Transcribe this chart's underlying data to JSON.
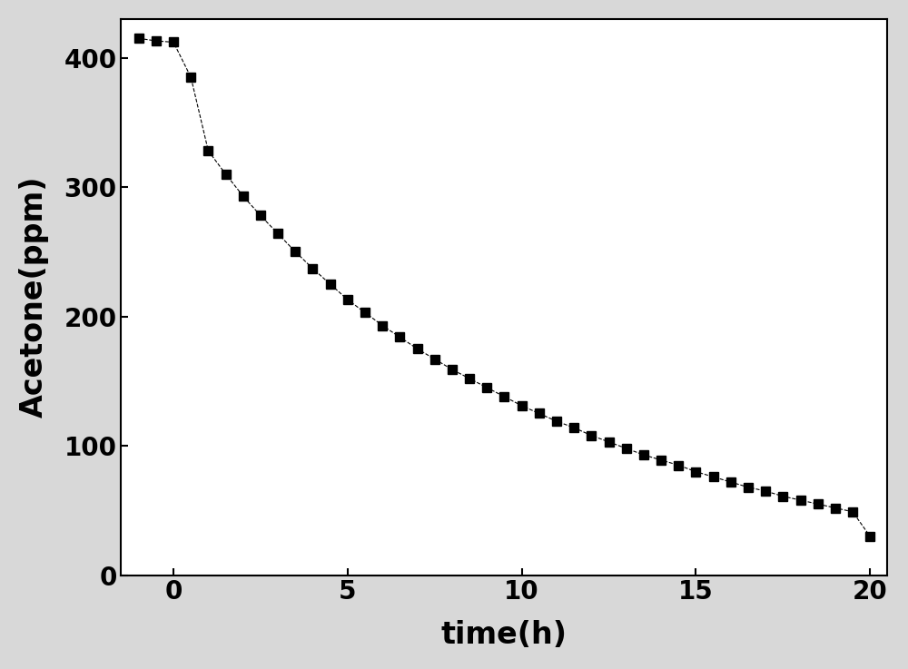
{
  "x": [
    -1.0,
    -0.5,
    0.0,
    0.5,
    1.0,
    1.5,
    2.0,
    2.5,
    3.0,
    3.5,
    4.0,
    4.5,
    5.0,
    5.5,
    6.0,
    6.5,
    7.0,
    7.5,
    8.0,
    8.5,
    9.0,
    9.5,
    10.0,
    10.5,
    11.0,
    11.5,
    12.0,
    12.5,
    13.0,
    13.5,
    14.0,
    14.5,
    15.0,
    15.5,
    16.0,
    16.5,
    17.0,
    17.5,
    18.0,
    18.5,
    19.0,
    19.5,
    20.0
  ],
  "y": [
    415,
    413,
    412,
    385,
    328,
    310,
    293,
    278,
    264,
    250,
    237,
    225,
    213,
    203,
    193,
    184,
    175,
    167,
    159,
    152,
    145,
    138,
    131,
    125,
    119,
    114,
    108,
    103,
    98,
    93,
    89,
    85,
    80,
    76,
    72,
    68,
    65,
    61,
    58,
    55,
    52,
    49,
    30
  ],
  "xlabel": "time(h)",
  "ylabel": "Acetone(ppm)",
  "xlim": [
    -1.5,
    20.5
  ],
  "ylim": [
    0,
    430
  ],
  "xticks": [
    0,
    5,
    10,
    15,
    20
  ],
  "yticks": [
    0,
    100,
    200,
    300,
    400
  ],
  "marker": "s",
  "marker_color": "black",
  "marker_size": 7,
  "line_style": "--",
  "line_color": "black",
  "line_width": 0.8,
  "background_color": "#d8d8d8",
  "plot_bg_color": "#ffffff",
  "xlabel_fontsize": 24,
  "ylabel_fontsize": 24,
  "tick_fontsize": 20,
  "xlabel_fontweight": "bold",
  "ylabel_fontweight": "bold"
}
